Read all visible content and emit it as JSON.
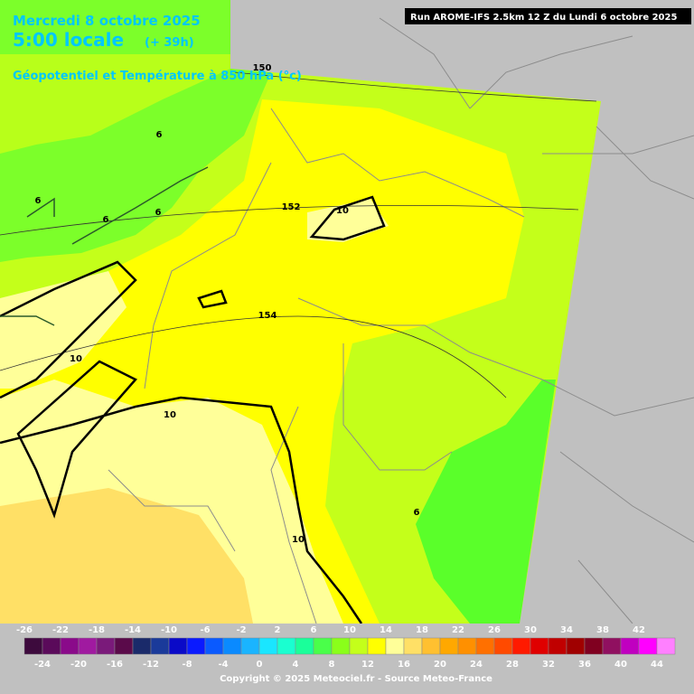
{
  "header": {
    "date": "Mercredi 8 octobre 2025",
    "time": "5:00 locale",
    "lead": "(+ 39h)",
    "title": "Géopotentiel et Température à 850 hPa (°c)",
    "run": "Run AROME-IFS 2.5km 12 Z du Lundi 6 octobre 2025"
  },
  "map": {
    "contour_labels": [
      "150",
      "152",
      "154",
      "6",
      "6",
      "6",
      "6",
      "6",
      "10",
      "10",
      "10",
      "10"
    ]
  },
  "colorbar": {
    "values": [
      -26,
      -24,
      -22,
      -20,
      -18,
      -16,
      -14,
      -12,
      -10,
      -8,
      -6,
      -4,
      -2,
      0,
      2,
      4,
      6,
      8,
      10,
      12,
      14,
      16,
      18,
      20,
      22,
      24,
      26,
      28,
      30,
      32,
      34,
      36,
      38,
      40,
      42,
      44
    ],
    "colors": [
      "#3d0a3d",
      "#5a0a5a",
      "#8a0a8a",
      "#a01aa0",
      "#7a1a7a",
      "#5a0a4a",
      "#1a2a6a",
      "#1a3a9a",
      "#0a0ac8",
      "#0a1aff",
      "#0a5aff",
      "#0a8aff",
      "#1ab4ff",
      "#1ae6ff",
      "#1affd0",
      "#1aff9a",
      "#4aff4a",
      "#8aff1a",
      "#c4ff1a",
      "#ffff00",
      "#ffff99",
      "#ffe066",
      "#ffc030",
      "#ffa800",
      "#ff9000",
      "#ff7000",
      "#ff4a00",
      "#ff1a00",
      "#e00000",
      "#c00000",
      "#a00000",
      "#800020",
      "#901060",
      "#c000c0",
      "#ff00ff",
      "#ff80ff"
    ]
  },
  "footer": {
    "copyright": "Copyright © 2025 Meteociel.fr - Source Meteo-France"
  }
}
